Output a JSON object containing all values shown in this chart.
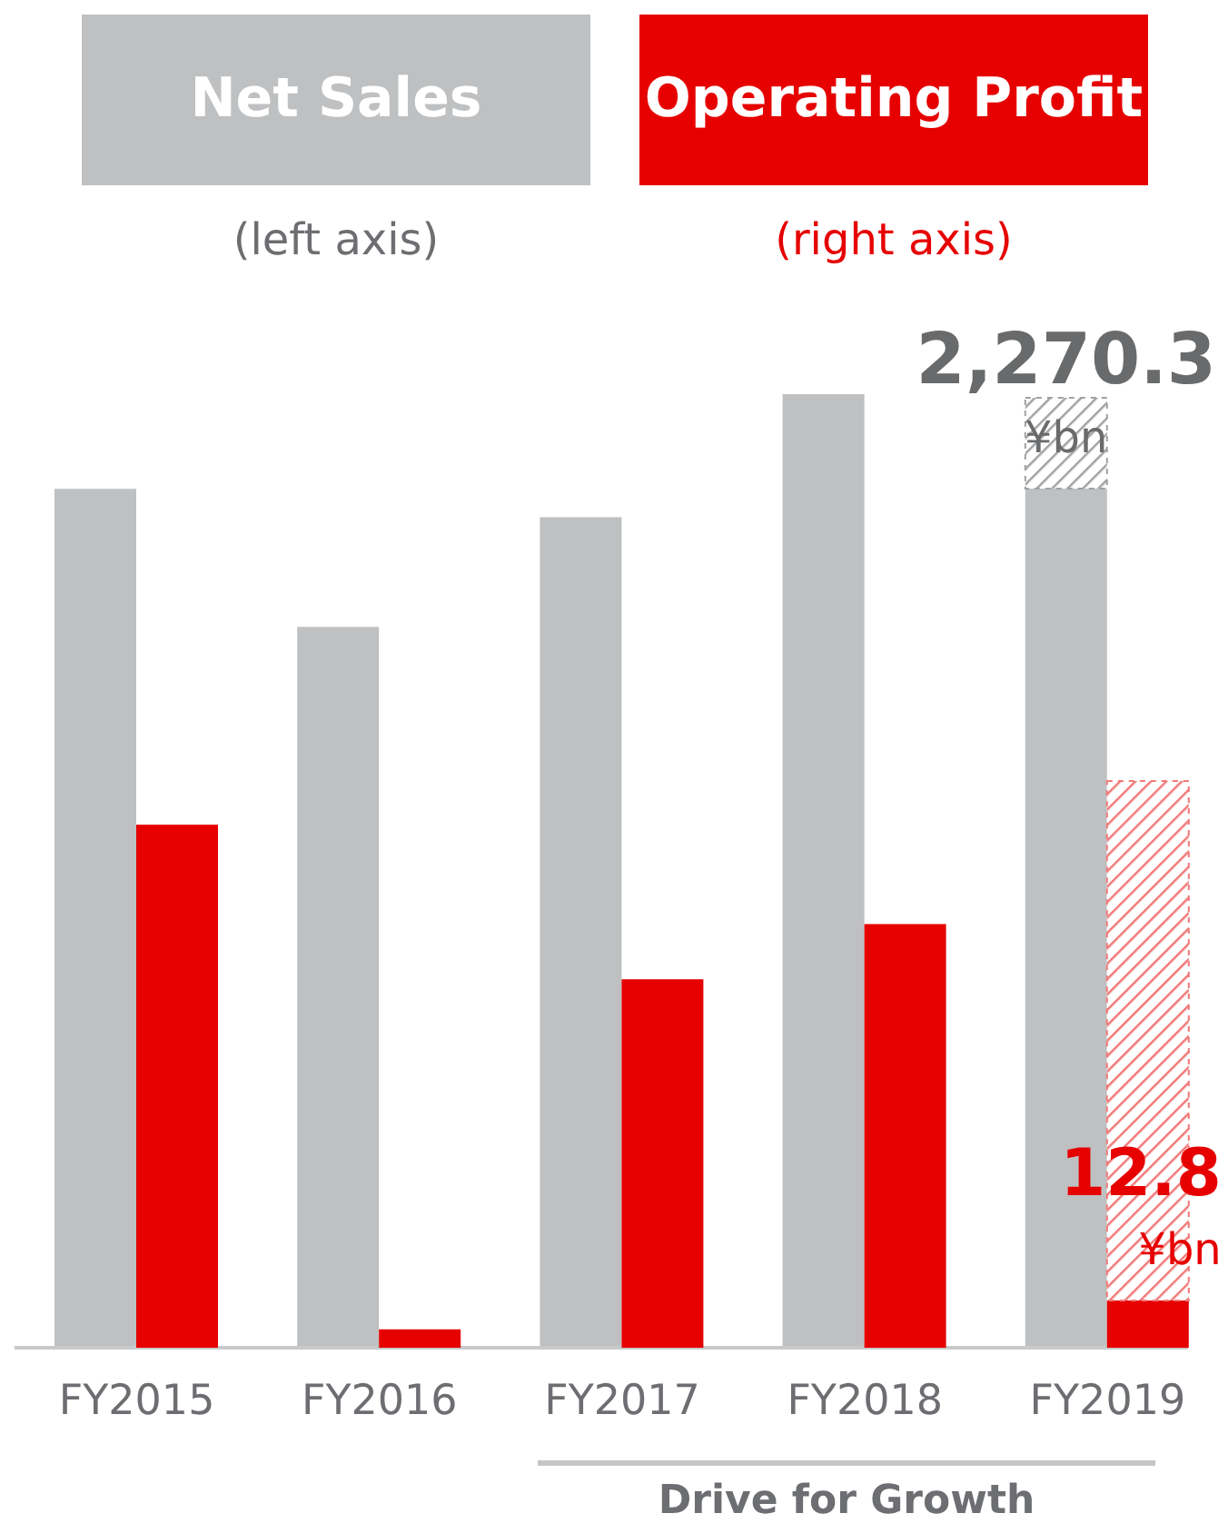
{
  "chart_data": {
    "type": "bar",
    "stacked": true,
    "categories": [
      "FY2015",
      "FY2016",
      "FY2017",
      "FY2018",
      "FY2019"
    ],
    "ylabel": "(left axis)",
    "y2label": "(right axis)",
    "legend": "top",
    "series": [
      {
        "name": "Net Sales",
        "color": "#bec0c2",
        "values": [
          2270,
          1905,
          2195,
          2520,
          2270.3
        ],
        "value_labels": [
          null,
          null,
          null,
          null,
          "2,270.3"
        ]
      },
      {
        "color": "#9fa1a3",
        "values": [
          null,
          null,
          null,
          null,
          240
        ]
      },
      {
        "name": "Operating Profit",
        "color": "#e60000",
        "axis": "y2",
        "values": [
          142,
          5,
          100,
          115,
          12.8
        ],
        "value_labels": [
          null,
          null,
          null,
          null,
          "12.8"
        ]
      },
      {
        "color": "#f27878",
        "axis": "y2",
        "values": [
          null,
          null,
          null,
          null,
          141
        ]
      }
    ],
    "annotations": [
      {
        "text": "¥bn",
        "x": "FY2019",
        "y": 2270.3
      },
      {
        "text": "¥bn",
        "x": "FY2019",
        "y": 12.8
      },
      "Drive for Growth"
    ]
  }
}
